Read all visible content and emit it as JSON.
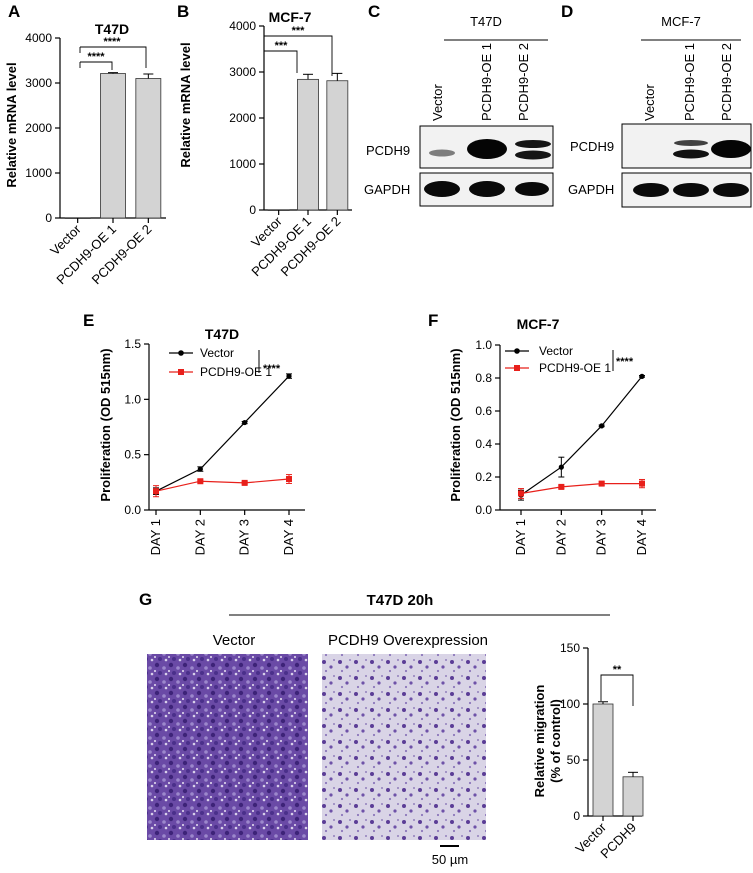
{
  "panels": {
    "a": {
      "letter": "A",
      "title": "T47D",
      "ylabel": "Relative mRNA level",
      "yticks": [
        "0",
        "1000",
        "2000",
        "3000",
        "4000"
      ],
      "sig": [
        "****",
        "****"
      ]
    },
    "b": {
      "letter": "B",
      "title": "MCF-7",
      "ylabel": "Relative mRNA level",
      "yticks": [
        "0",
        "1000",
        "2000",
        "3000",
        "4000"
      ],
      "sig": [
        "***",
        "***"
      ]
    },
    "c": {
      "letter": "C",
      "header": "T47D",
      "lanes": [
        "Vector",
        "PCDH9-OE 1",
        "PCDH9-OE 2"
      ],
      "rows": [
        "PCDH9",
        "GAPDH"
      ]
    },
    "d": {
      "letter": "D",
      "header": "MCF-7",
      "lanes": [
        "Vector",
        "PCDH9-OE 1",
        "PCDH9-OE 2"
      ],
      "rows": [
        "PCDH9",
        "GAPDH"
      ]
    },
    "e": {
      "letter": "E",
      "title": "T47D",
      "ylabel": "Proliferation (OD 515nm)",
      "yticks": [
        "0.0",
        "0.5",
        "1.0",
        "1.5"
      ],
      "sig": "****"
    },
    "f": {
      "letter": "F",
      "title": "MCF-7",
      "ylabel": "Proliferation (OD 515nm)",
      "yticks": [
        "0.0",
        "0.2",
        "0.4",
        "0.6",
        "0.8",
        "1.0"
      ],
      "sig": "****"
    },
    "g": {
      "letter": "G",
      "header": "T47D 20h",
      "img_left": "Vector",
      "img_right": "PCDH9 Overexpression",
      "scalebar": "50 µm",
      "ylabel_1": "Relative migration",
      "ylabel_2": "(% of control)",
      "yticks": [
        "0",
        "50",
        "100",
        "150"
      ],
      "sig": "**"
    }
  },
  "chart_data": [
    {
      "id": "A",
      "type": "bar",
      "title": "T47D",
      "ylabel": "Relative mRNA level",
      "categories": [
        "Vector",
        "PCDH9-OE 1",
        "PCDH9-OE 2"
      ],
      "values": [
        1,
        3210,
        3100
      ],
      "errors": [
        0,
        20,
        100
      ],
      "ylim": [
        0,
        4000
      ],
      "bar_color": "#d3d3d3"
    },
    {
      "id": "B",
      "type": "bar",
      "title": "MCF-7",
      "ylabel": "Relative mRNA level",
      "categories": [
        "Vector",
        "PCDH9-OE 1",
        "PCDH9-OE 2"
      ],
      "values": [
        1,
        2840,
        2810
      ],
      "errors": [
        0,
        110,
        160
      ],
      "ylim": [
        0,
        4000
      ],
      "bar_color": "#d3d3d3"
    },
    {
      "id": "E",
      "type": "line",
      "title": "T47D",
      "ylabel": "Proliferation (OD 515nm)",
      "categories": [
        "DAY 1",
        "DAY 2",
        "DAY 3",
        "DAY 4"
      ],
      "series": [
        {
          "name": "Vector",
          "color": "#000000",
          "values": [
            0.17,
            0.37,
            0.79,
            1.21
          ],
          "errors": [
            0.03,
            0.02,
            0.01,
            0.02
          ]
        },
        {
          "name": "PCDH9-OE 1",
          "color": "#e8201b",
          "values": [
            0.17,
            0.26,
            0.245,
            0.28
          ],
          "errors": [
            0.05,
            0.01,
            0.01,
            0.04
          ]
        }
      ],
      "ylim": [
        0,
        1.5
      ]
    },
    {
      "id": "F",
      "type": "line",
      "title": "MCF-7",
      "ylabel": "Proliferation (OD 515nm)",
      "categories": [
        "DAY 1",
        "DAY 2",
        "DAY 3",
        "DAY 4"
      ],
      "series": [
        {
          "name": "Vector",
          "color": "#000000",
          "values": [
            0.09,
            0.26,
            0.51,
            0.81
          ],
          "errors": [
            0.03,
            0.06,
            0.005,
            0.005
          ]
        },
        {
          "name": "PCDH9-OE 1",
          "color": "#e8201b",
          "values": [
            0.1,
            0.14,
            0.16,
            0.16
          ],
          "errors": [
            0.03,
            0.01,
            0.01,
            0.025
          ]
        }
      ],
      "ylim": [
        0,
        1.0
      ]
    },
    {
      "id": "G",
      "type": "bar",
      "ylabel": "Relative migration (% of control)",
      "categories": [
        "Vector",
        "PCDH9"
      ],
      "values": [
        100,
        35
      ],
      "errors": [
        2,
        4
      ],
      "ylim": [
        0,
        150
      ],
      "bar_color": "#d3d3d3"
    }
  ]
}
